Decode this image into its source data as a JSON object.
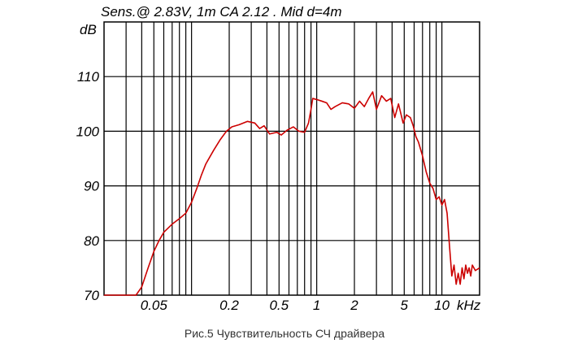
{
  "chart_data": {
    "type": "line",
    "title": "Sens.@ 2.83V, 1m CA 2.12 . Mid  d=4m",
    "ylabel": "dB",
    "xunit": "kHz",
    "xscale": "log",
    "xlim": [
      0.02,
      20
    ],
    "ylim": [
      70,
      120
    ],
    "grid": true,
    "y_ticks": [
      {
        "value": 110,
        "label": "110"
      },
      {
        "value": 100,
        "label": "100"
      },
      {
        "value": 90,
        "label": "90"
      },
      {
        "value": 80,
        "label": "80"
      },
      {
        "value": 70,
        "label": "70"
      }
    ],
    "x_ticks": [
      {
        "value": 0.05,
        "label": "0.05"
      },
      {
        "value": 0.2,
        "label": "0.2"
      },
      {
        "value": 0.5,
        "label": "0.5"
      },
      {
        "value": 1,
        "label": "1"
      },
      {
        "value": 2,
        "label": "2"
      },
      {
        "value": 5,
        "label": "5"
      },
      {
        "value": 10,
        "label": "10"
      }
    ],
    "series": [
      {
        "color": "#cc0000",
        "points": [
          [
            0.02,
            70
          ],
          [
            0.03,
            70
          ],
          [
            0.036,
            70
          ],
          [
            0.04,
            71.5
          ],
          [
            0.045,
            75
          ],
          [
            0.05,
            78
          ],
          [
            0.055,
            80
          ],
          [
            0.06,
            81.5
          ],
          [
            0.07,
            83
          ],
          [
            0.08,
            84
          ],
          [
            0.09,
            85
          ],
          [
            0.1,
            87
          ],
          [
            0.11,
            89.5
          ],
          [
            0.12,
            92
          ],
          [
            0.13,
            94
          ],
          [
            0.15,
            96.5
          ],
          [
            0.17,
            98.5
          ],
          [
            0.19,
            100
          ],
          [
            0.21,
            100.8
          ],
          [
            0.24,
            101.2
          ],
          [
            0.28,
            101.8
          ],
          [
            0.32,
            101.5
          ],
          [
            0.35,
            100.5
          ],
          [
            0.38,
            101
          ],
          [
            0.42,
            99.5
          ],
          [
            0.48,
            99.8
          ],
          [
            0.52,
            99.3
          ],
          [
            0.58,
            100.2
          ],
          [
            0.65,
            100.8
          ],
          [
            0.72,
            100
          ],
          [
            0.8,
            99.8
          ],
          [
            0.86,
            101.5
          ],
          [
            0.9,
            104
          ],
          [
            0.93,
            106
          ],
          [
            1.0,
            105.8
          ],
          [
            1.1,
            105.5
          ],
          [
            1.2,
            105.2
          ],
          [
            1.3,
            104
          ],
          [
            1.4,
            104.5
          ],
          [
            1.6,
            105.2
          ],
          [
            1.8,
            105
          ],
          [
            2.0,
            104.2
          ],
          [
            2.2,
            105.5
          ],
          [
            2.4,
            104.5
          ],
          [
            2.6,
            106
          ],
          [
            2.8,
            107.2
          ],
          [
            3.0,
            104
          ],
          [
            3.3,
            106.5
          ],
          [
            3.6,
            105.5
          ],
          [
            3.9,
            106
          ],
          [
            4.2,
            102.5
          ],
          [
            4.5,
            105
          ],
          [
            4.9,
            101.5
          ],
          [
            5.2,
            103
          ],
          [
            5.6,
            102.5
          ],
          [
            5.9,
            101
          ],
          [
            6.2,
            99
          ],
          [
            6.5,
            98
          ],
          [
            7.0,
            95.5
          ],
          [
            7.5,
            92.5
          ],
          [
            8.0,
            90.5
          ],
          [
            8.5,
            89.5
          ],
          [
            9.0,
            87.5
          ],
          [
            9.5,
            88
          ],
          [
            10.0,
            86.5
          ],
          [
            10.5,
            87.5
          ],
          [
            11.0,
            85
          ],
          [
            11.5,
            79
          ],
          [
            12.0,
            73.5
          ],
          [
            12.5,
            75.5
          ],
          [
            13.0,
            72
          ],
          [
            13.5,
            74
          ],
          [
            14.0,
            72
          ],
          [
            14.5,
            75
          ],
          [
            15.0,
            73
          ],
          [
            15.5,
            75.5
          ],
          [
            16.0,
            74
          ],
          [
            16.5,
            75
          ],
          [
            17.0,
            73.5
          ],
          [
            17.5,
            75.5
          ],
          [
            18.5,
            74.5
          ],
          [
            20.0,
            75
          ]
        ]
      }
    ]
  },
  "caption": "Рис.5 Чувствительность СЧ драйвера"
}
